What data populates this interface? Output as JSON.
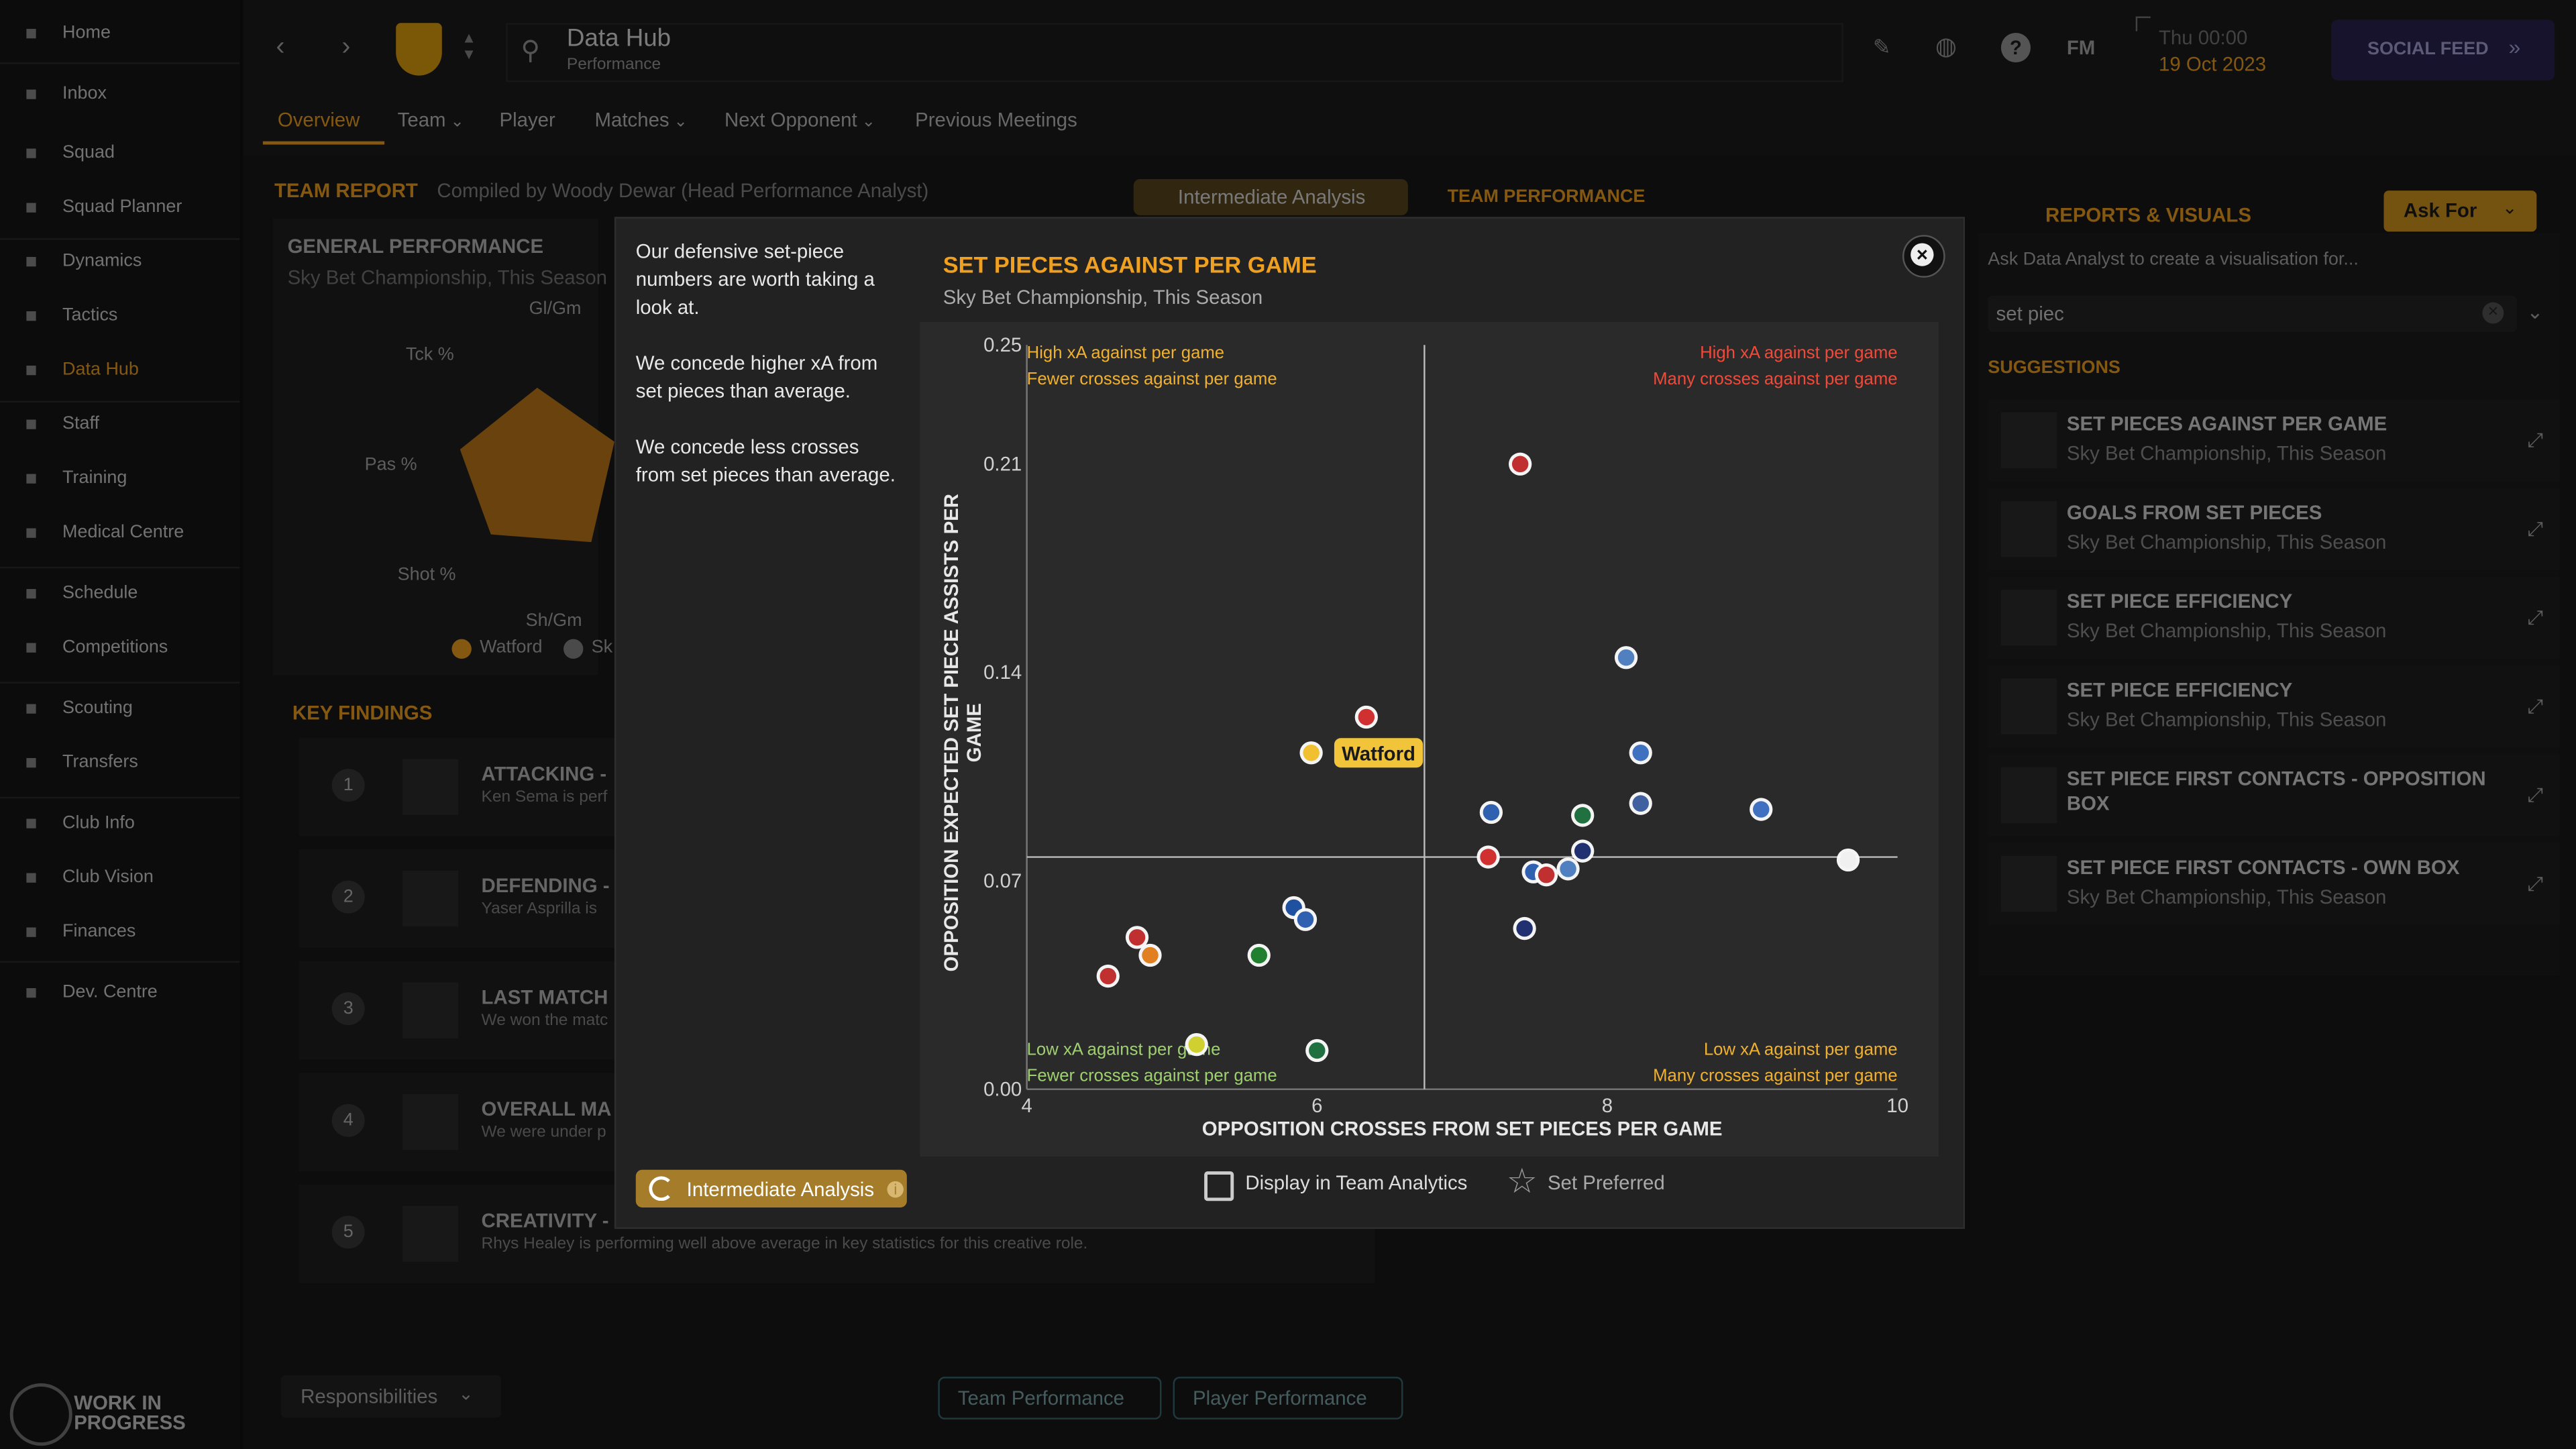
{
  "nav": {
    "items": [
      {
        "label": "Home",
        "icon": "home-icon"
      },
      {
        "label": "Inbox",
        "icon": "inbox-icon"
      },
      {
        "label": "Squad",
        "icon": "squad-icon"
      },
      {
        "label": "Squad Planner",
        "icon": "squad-planner-icon"
      },
      {
        "label": "Dynamics",
        "icon": "dynamics-icon"
      },
      {
        "label": "Tactics",
        "icon": "tactics-icon"
      },
      {
        "label": "Data Hub",
        "icon": "data-hub-icon",
        "active": true
      },
      {
        "label": "Staff",
        "icon": "staff-icon"
      },
      {
        "label": "Training",
        "icon": "training-icon"
      },
      {
        "label": "Medical Centre",
        "icon": "medical-icon"
      },
      {
        "label": "Schedule",
        "icon": "schedule-icon"
      },
      {
        "label": "Competitions",
        "icon": "trophy-icon"
      },
      {
        "label": "Scouting",
        "icon": "scouting-icon"
      },
      {
        "label": "Transfers",
        "icon": "transfers-icon"
      },
      {
        "label": "Club Info",
        "icon": "club-info-icon"
      },
      {
        "label": "Club Vision",
        "icon": "club-vision-icon"
      },
      {
        "label": "Finances",
        "icon": "finances-icon"
      },
      {
        "label": "Dev. Centre",
        "icon": "dev-centre-icon"
      }
    ],
    "wip_label_1": "WORK IN",
    "wip_label_2": "PROGRESS"
  },
  "header": {
    "title": "Data Hub",
    "subtitle": "Performance",
    "fm_label": "FM",
    "date_line1": "Thu 00:00",
    "date_line2": "19 Oct 2023",
    "social_feed": "SOCIAL FEED",
    "tabs": [
      "Overview",
      "Team",
      "Player",
      "Matches",
      "Next Opponent",
      "Previous Meetings"
    ]
  },
  "background": {
    "team_report": "TEAM REPORT",
    "compiled_by": "Compiled by Woody Dewar (Head Performance Analyst)",
    "intermediate_analysis": "Intermediate Analysis",
    "team_performance_link": "TEAM PERFORMANCE",
    "general_performance": "GENERAL PERFORMANCE",
    "general_sub": "Sky Bet Championship, This Season",
    "radar_labels": [
      "Gl/Gm",
      "Tck %",
      "Pas %",
      "Shot %",
      "Sh/Gm"
    ],
    "legend_watford": "Watford",
    "legend_sk": "Sk",
    "key_findings": "KEY FINDINGS",
    "findings": [
      {
        "num": "1",
        "title": "ATTACKING -",
        "sub": "Ken Sema is perf"
      },
      {
        "num": "2",
        "title": "DEFENDING -",
        "sub": "Yaser Asprilla is"
      },
      {
        "num": "3",
        "title": "LAST MATCH",
        "sub": "We won the matc"
      },
      {
        "num": "4",
        "title": "OVERALL MA",
        "sub": "We were under p"
      },
      {
        "num": "5",
        "title": "CREATIVITY - FORWARDS - R. HEALEY",
        "sub": "Rhys Healey is performing well above average in key statistics for this creative role."
      }
    ],
    "responsibilities": "Responsibilities",
    "team_performance_btn": "Team Performance",
    "player_performance_btn": "Player Performance"
  },
  "right_panel": {
    "title": "REPORTS & VISUALS",
    "ask_for": "Ask For",
    "prompt": "Ask Data Analyst to create a visualisation for...",
    "search_value": "set piec",
    "suggestions_label": "SUGGESTIONS",
    "suggestions": [
      {
        "title": "SET PIECES AGAINST PER GAME",
        "sub": "Sky Bet Championship, This Season"
      },
      {
        "title": "GOALS FROM SET PIECES",
        "sub": "Sky Bet Championship, This Season"
      },
      {
        "title": "SET PIECE EFFICIENCY",
        "sub": "Sky Bet Championship, This Season"
      },
      {
        "title": "SET PIECE EFFICIENCY",
        "sub": "Sky Bet Championship, This Season"
      },
      {
        "title": "SET PIECE FIRST CONTACTS - OPPOSITION BOX",
        "sub": ""
      },
      {
        "title": "SET PIECE FIRST CONTACTS - OWN BOX",
        "sub": "Sky Bet Championship, This Season"
      }
    ]
  },
  "modal": {
    "description": [
      "Our defensive set-piece numbers are worth taking a look at.",
      "We concede higher xA from set pieces than average.",
      "We concede less crosses from set pieces than average."
    ],
    "intermediate_analysis": "Intermediate Analysis",
    "display_in_team_analytics": "Display in Team Analytics",
    "set_preferred": "Set Preferred",
    "colors": {
      "accent": "#f0a020",
      "red": "#f04040",
      "green": "#a8e070"
    }
  },
  "chart_data": {
    "type": "scatter",
    "title": "SET PIECES AGAINST PER GAME",
    "subtitle": "Sky Bet Championship, This Season",
    "xlabel": "OPPOSITION CROSSES FROM SET PIECES PER GAME",
    "ylabel": "OPPOSITION EXPECTED SET PIECE ASSISTS PER GAME",
    "xlim": [
      4,
      10
    ],
    "ylim": [
      0,
      0.25
    ],
    "x_ticks": [
      4,
      6,
      8,
      10
    ],
    "y_ticks": [
      0.0,
      0.07,
      0.14,
      0.21,
      0.25
    ],
    "average_x": 6.74,
    "average_y": 0.078,
    "quadrant_labels": {
      "top_left": [
        "High xA against per game",
        "Fewer crosses against per game"
      ],
      "top_right": [
        "High xA against per game",
        "Many crosses against per game"
      ],
      "bottom_left": [
        "Low xA against per game",
        "Fewer crosses against per game"
      ],
      "bottom_right": [
        "Low xA against per game",
        "Many crosses against per game"
      ]
    },
    "highlight_label": "Watford",
    "points": [
      {
        "x": 5.96,
        "y": 0.113,
        "color": "#f0c030",
        "highlight": true
      },
      {
        "x": 6.34,
        "y": 0.125,
        "color": "#d03030"
      },
      {
        "x": 7.4,
        "y": 0.21,
        "color": "#c03030"
      },
      {
        "x": 8.13,
        "y": 0.145,
        "color": "#5080c0"
      },
      {
        "x": 8.23,
        "y": 0.113,
        "color": "#4070c0"
      },
      {
        "x": 8.23,
        "y": 0.096,
        "color": "#4060a0"
      },
      {
        "x": 9.06,
        "y": 0.094,
        "color": "#4070c0"
      },
      {
        "x": 7.2,
        "y": 0.093,
        "color": "#3060b0"
      },
      {
        "x": 7.83,
        "y": 0.092,
        "color": "#207040"
      },
      {
        "x": 7.18,
        "y": 0.078,
        "color": "#d03030"
      },
      {
        "x": 7.83,
        "y": 0.08,
        "color": "#203070"
      },
      {
        "x": 9.66,
        "y": 0.077,
        "color": "#f0f0f0"
      },
      {
        "x": 7.49,
        "y": 0.073,
        "color": "#3060b0"
      },
      {
        "x": 7.58,
        "y": 0.072,
        "color": "#c03030"
      },
      {
        "x": 7.73,
        "y": 0.074,
        "color": "#5080c0"
      },
      {
        "x": 7.43,
        "y": 0.054,
        "color": "#203070"
      },
      {
        "x": 5.84,
        "y": 0.061,
        "color": "#2050a0"
      },
      {
        "x": 5.92,
        "y": 0.057,
        "color": "#3060b0"
      },
      {
        "x": 5.6,
        "y": 0.045,
        "color": "#208030"
      },
      {
        "x": 4.76,
        "y": 0.051,
        "color": "#c03030"
      },
      {
        "x": 4.85,
        "y": 0.045,
        "color": "#e08020"
      },
      {
        "x": 4.56,
        "y": 0.038,
        "color": "#c03030"
      },
      {
        "x": 5.17,
        "y": 0.015,
        "color": "#d0d030"
      },
      {
        "x": 6.0,
        "y": 0.013,
        "color": "#207040"
      }
    ]
  }
}
